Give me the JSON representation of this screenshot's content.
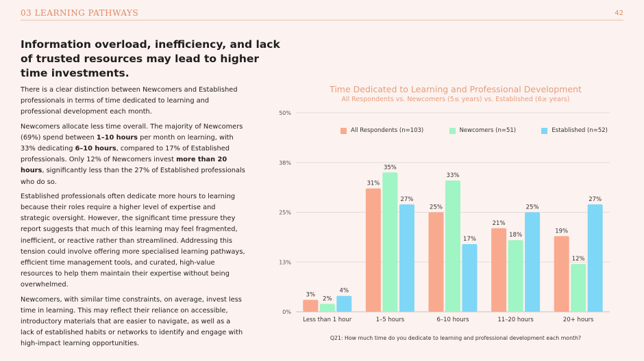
{
  "header": {
    "section": "03 LEARNING PATHWAYS",
    "page": "42"
  },
  "headline": "Information overload, inefficiency, and lack of trusted resources may lead to higher time investments.",
  "body": {
    "p1": "There is a clear distinction between Newcomers and Established professionals in terms of time dedicated to learning and professional development each month.",
    "p2": {
      "t1": "Newcomers allocate less time overall. The majority of Newcomers (69%) spend between ",
      "b1": "1–10 hours",
      "t2": " per month on learning, with 33% dedicating ",
      "b2": "6–10 hours",
      "t3": ", compared to 17% of Established professionals. Only 12% of Newcomers invest ",
      "b3": "more than 20 hours",
      "t4": ", significantly less than the 27% of Established professionals who do so."
    },
    "p3": "Established professionals often dedicate more hours to learning because their roles require a higher level of expertise and strategic oversight. However, the significant time pressure they report suggests that much of this learning may feel fragmented, inefficient, or reactive rather than streamlined. Addressing this tension could involve offering more specialised learning pathways, efficient time management tools, and curated, high-value resources to help them maintain their expertise without being overwhelmed.",
    "p4": "Newcomers, with similar time constraints, on average, invest less time in learning. This may reflect their reliance on accessible, introductory materials that are easier to navigate, as well as a lack of established habits or networks to identify and engage with high-impact learning opportunities."
  },
  "footnote": "Q21: How much time do you dedicate to learning and professional development each month?",
  "colors": {
    "all": "#f9a98e",
    "newcomers": "#9ff5c4",
    "established": "#7ed7f6",
    "accent": "#e08a66"
  },
  "chart_data": {
    "type": "bar",
    "title": "Time Dedicated to Learning and Professional Development",
    "subtitle": "All Respondents vs. Newcomers (5≤ years) vs. Established (6≥ years)",
    "categories": [
      "Less than 1 hour",
      "1–5 hours",
      "6–10 hours",
      "11–20 hours",
      "20+ hours"
    ],
    "series": [
      {
        "name": "All Respondents (n=103)",
        "color": "#f9a98e",
        "values": [
          3,
          31,
          25,
          21,
          19
        ]
      },
      {
        "name": "Newcomers (n=51)",
        "color": "#9ff5c4",
        "values": [
          2,
          35,
          33,
          18,
          12
        ]
      },
      {
        "name": "Established (n=52)",
        "color": "#7ed7f6",
        "values": [
          4,
          27,
          17,
          25,
          27
        ]
      }
    ],
    "yticks": [
      "0%",
      "13%",
      "25%",
      "38%",
      "50%"
    ],
    "ytick_values": [
      0,
      12.5,
      25,
      37.5,
      50
    ],
    "ylim": [
      0,
      50
    ],
    "legend_position": "top",
    "grid": true
  }
}
